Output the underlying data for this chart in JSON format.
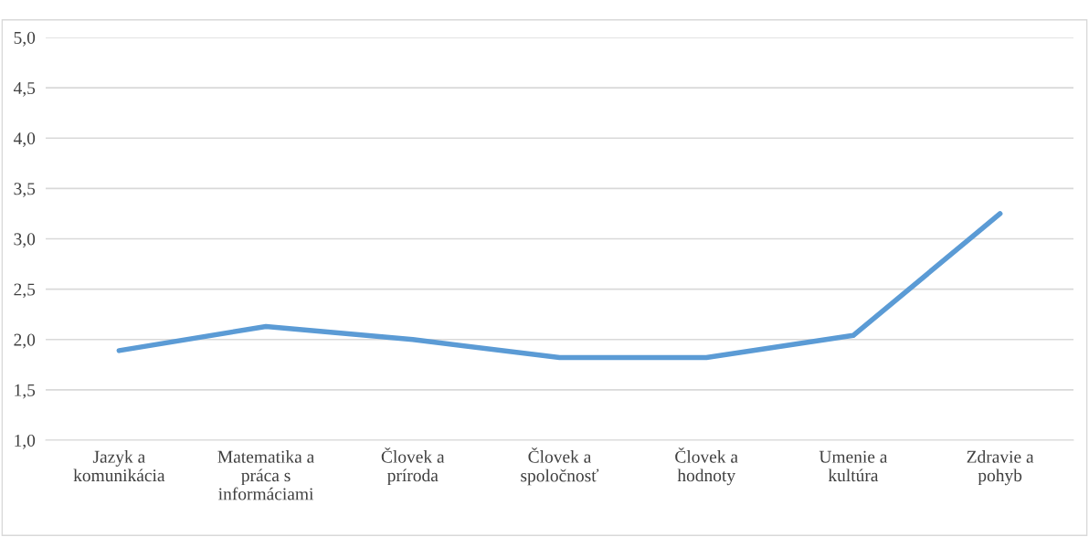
{
  "chart_data": {
    "type": "line",
    "categories": [
      "Jazyk a\nkomunikácia",
      "Matematika a\npráca s\ninformáciami",
      "Človek a\npríroda",
      "Človek a\nspoločnosť",
      "Človek a\nhodnoty",
      "Umenie a\nkultúra",
      "Zdravie a\npohyb"
    ],
    "series": [
      {
        "color": "#5b9bd5",
        "values": [
          1.89,
          2.13,
          2.0,
          1.82,
          1.82,
          2.04,
          3.25
        ]
      }
    ],
    "ylim": [
      1.0,
      5.0
    ],
    "yticks": [
      {
        "value": 1.0,
        "label": "1,0"
      },
      {
        "value": 1.5,
        "label": "1,5"
      },
      {
        "value": 2.0,
        "label": "2,0"
      },
      {
        "value": 2.5,
        "label": "2,5"
      },
      {
        "value": 3.0,
        "label": "3,0"
      },
      {
        "value": 3.5,
        "label": "3,5"
      },
      {
        "value": 4.0,
        "label": "4,0"
      },
      {
        "value": 4.5,
        "label": "4,5"
      },
      {
        "value": 5.0,
        "label": "5,0"
      }
    ],
    "grid": "y",
    "marker": "none",
    "line_style": "solid"
  }
}
